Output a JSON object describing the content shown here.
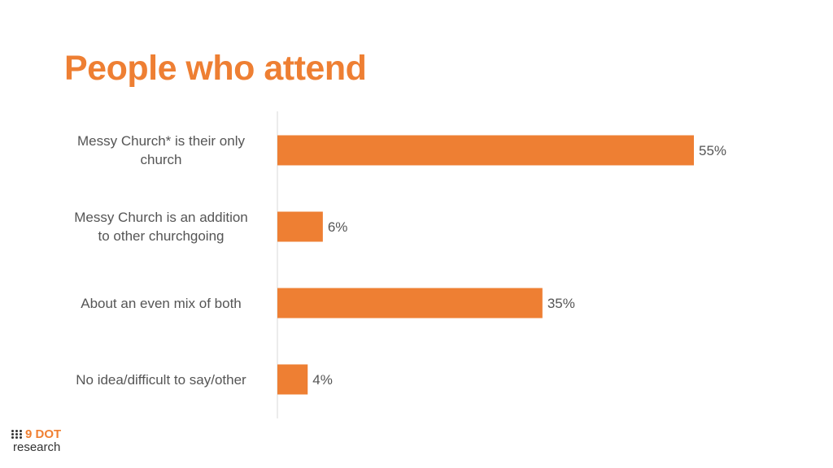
{
  "title": "People who attend",
  "brand": {
    "name": "9 DOT",
    "sub": "research",
    "color": "#F07F31"
  },
  "colors": {
    "bar": "#EE7F33",
    "title": "#EE7F33",
    "label": "#555555",
    "axis": "#D9D9D9"
  },
  "chart_data": {
    "type": "bar",
    "orientation": "horizontal",
    "categories": [
      [
        "Messy Church* is their only",
        "church"
      ],
      [
        "Messy Church is an addition",
        "to other churchgoing"
      ],
      [
        "About an even mix of both"
      ],
      [
        "No idea/difficult to say/other"
      ]
    ],
    "values": [
      55,
      6,
      35,
      4
    ],
    "data_labels": [
      "55%",
      "6%",
      "35%",
      "4%"
    ],
    "xlim": [
      0,
      60
    ],
    "grid": false,
    "legend": "none"
  }
}
